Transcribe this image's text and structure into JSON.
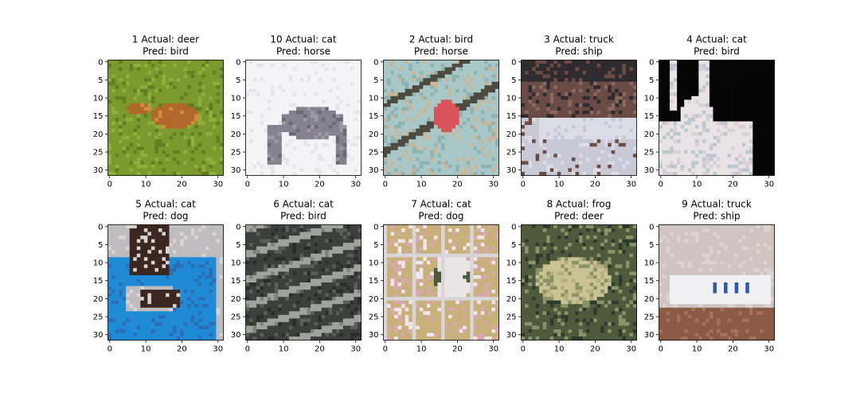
{
  "figure": {
    "background": "#ffffff",
    "axis_color": "#000000",
    "tick_label_color": "#000000",
    "title_color": "#000000"
  },
  "chart_data": [
    {
      "type": "image",
      "title_line1": "1 Actual: deer",
      "title_line2": "Pred: bird",
      "xticks": [
        0,
        10,
        20,
        30
      ],
      "yticks": [
        0,
        5,
        10,
        15,
        20,
        25,
        30
      ],
      "xlim": [
        -0.5,
        31.5
      ],
      "ylim": [
        31.5,
        -0.5
      ],
      "image": {
        "subject": "deer",
        "colors": [
          "#7a9a2e",
          "#8fae3a",
          "#5f7f22",
          "#b0692a",
          "#d9883e"
        ]
      }
    },
    {
      "type": "image",
      "title_line1": "10 Actual: cat",
      "title_line2": "Pred: horse",
      "xticks": [
        0,
        10,
        20,
        30
      ],
      "yticks": [
        0,
        5,
        10,
        15,
        20,
        25,
        30
      ],
      "xlim": [
        -0.5,
        31.5
      ],
      "ylim": [
        31.5,
        -0.5
      ],
      "image": {
        "subject": "cat",
        "colors": [
          "#f4f4f6",
          "#e6e6ea",
          "#858290",
          "#6c6977",
          "#9c98a6"
        ]
      }
    },
    {
      "type": "image",
      "title_line1": "2 Actual: bird",
      "title_line2": "Pred: horse",
      "xticks": [
        0,
        10,
        20,
        30
      ],
      "yticks": [
        0,
        5,
        10,
        15,
        20,
        25,
        30
      ],
      "xlim": [
        -0.5,
        31.5
      ],
      "ylim": [
        31.5,
        -0.5
      ],
      "image": {
        "subject": "bird",
        "colors": [
          "#a9c7c7",
          "#8fb3b0",
          "#c9b79a",
          "#d8535a",
          "#4d4a3f"
        ]
      }
    },
    {
      "type": "image",
      "title_line1": "3 Actual: truck",
      "title_line2": "Pred: ship",
      "xticks": [
        0,
        10,
        20,
        30
      ],
      "yticks": [
        0,
        5,
        10,
        15,
        20,
        25,
        30
      ],
      "xlim": [
        -0.5,
        31.5
      ],
      "ylim": [
        31.5,
        -0.5
      ],
      "image": {
        "subject": "truck",
        "colors": [
          "#2e2a2e",
          "#6a4b45",
          "#8a6a5e",
          "#dcdce6",
          "#c9c9d6"
        ]
      }
    },
    {
      "type": "image",
      "title_line1": "4 Actual: cat",
      "title_line2": "Pred: bird",
      "xticks": [
        0,
        10,
        20,
        30
      ],
      "yticks": [
        0,
        5,
        10,
        15,
        20,
        25,
        30
      ],
      "xlim": [
        -0.5,
        31.5
      ],
      "ylim": [
        31.5,
        -0.5
      ],
      "image": {
        "subject": "cat",
        "colors": [
          "#050505",
          "#101010",
          "#e9e3e6",
          "#d9cfd6",
          "#bcc7cf"
        ]
      }
    },
    {
      "type": "image",
      "title_line1": "5 Actual: cat",
      "title_line2": "Pred: dog",
      "xticks": [
        0,
        10,
        20,
        30
      ],
      "yticks": [
        0,
        5,
        10,
        15,
        20,
        25,
        30
      ],
      "xlim": [
        -0.5,
        31.5
      ],
      "ylim": [
        31.5,
        -0.5
      ],
      "image": {
        "subject": "cat",
        "colors": [
          "#1f8ad6",
          "#2a6fb6",
          "#3b2720",
          "#d9d4d0",
          "#bfbcc0"
        ]
      }
    },
    {
      "type": "image",
      "title_line1": "6 Actual: cat",
      "title_line2": "Pred: bird",
      "xticks": [
        0,
        10,
        20,
        30
      ],
      "yticks": [
        0,
        5,
        10,
        15,
        20,
        25,
        30
      ],
      "xlim": [
        -0.5,
        31.5
      ],
      "ylim": [
        31.5,
        -0.5
      ],
      "image": {
        "subject": "cat",
        "colors": [
          "#3c403c",
          "#5a5e58",
          "#7f827b",
          "#9ea39b",
          "#2a2d2a"
        ]
      }
    },
    {
      "type": "image",
      "title_line1": "7 Actual: cat",
      "title_line2": "Pred: dog",
      "xticks": [
        0,
        10,
        20,
        30
      ],
      "yticks": [
        0,
        5,
        10,
        15,
        20,
        25,
        30
      ],
      "xlim": [
        -0.5,
        31.5
      ],
      "ylim": [
        31.5,
        -0.5
      ],
      "image": {
        "subject": "cat",
        "colors": [
          "#c8b07a",
          "#e9e4e6",
          "#f2e6ea",
          "#4a5a3a",
          "#d8a8ae"
        ]
      }
    },
    {
      "type": "image",
      "title_line1": "8 Actual: frog",
      "title_line2": "Pred: deer",
      "xticks": [
        0,
        10,
        20,
        30
      ],
      "yticks": [
        0,
        5,
        10,
        15,
        20,
        25,
        30
      ],
      "xlim": [
        -0.5,
        31.5
      ],
      "ylim": [
        31.5,
        -0.5
      ],
      "image": {
        "subject": "frog",
        "colors": [
          "#4f5a3c",
          "#8a9268",
          "#c9c292",
          "#b7ad7e",
          "#2f3a2c"
        ]
      }
    },
    {
      "type": "image",
      "title_line1": "9 Actual: truck",
      "title_line2": "Pred: ship",
      "xticks": [
        0,
        10,
        20,
        30
      ],
      "yticks": [
        0,
        5,
        10,
        15,
        20,
        25,
        30
      ],
      "xlim": [
        -0.5,
        31.5
      ],
      "ylim": [
        31.5,
        -0.5
      ],
      "image": {
        "subject": "truck",
        "colors": [
          "#cfc4c2",
          "#dcd3d1",
          "#8a5a44",
          "#a8705a",
          "#2f58b0"
        ]
      }
    }
  ]
}
